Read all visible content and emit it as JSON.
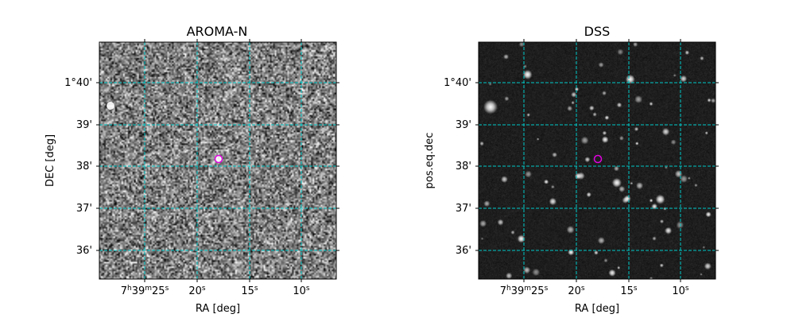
{
  "chart_data": [
    {
      "type": "heatmap",
      "title": "AROMA-N",
      "xlabel": "RA [deg]",
      "ylabel": "DEC [deg]",
      "x_tick_labels": [
        {
          "base": "7",
          "s1": "h",
          "mid": "39",
          "s2": "m",
          "end": "25",
          "s3": "s"
        },
        {
          "base": "20",
          "s1": "s"
        },
        {
          "base": "15",
          "s1": "s"
        },
        {
          "base": "10",
          "s1": "s"
        }
      ],
      "y_tick_labels": [
        "1°40'",
        "39'",
        "38'",
        "37'",
        "36'"
      ],
      "grid": true,
      "grid_color": "#00c8c8",
      "image_style": "noise",
      "bright_sources": [
        {
          "ra": "7h39m30s",
          "dec": "1°39.4'"
        }
      ],
      "marker": {
        "ra": "7h39m18s",
        "dec": "1°38.2'",
        "color": "#e000e0"
      }
    },
    {
      "type": "heatmap",
      "title": "DSS",
      "xlabel": "RA [deg]",
      "ylabel": "pos.eq.dec",
      "x_tick_labels": [
        {
          "base": "7",
          "s1": "h",
          "mid": "39",
          "s2": "m",
          "end": "25",
          "s3": "s"
        },
        {
          "base": "20",
          "s1": "s"
        },
        {
          "base": "15",
          "s1": "s"
        },
        {
          "base": "10",
          "s1": "s"
        }
      ],
      "y_tick_labels": [
        "1°40'",
        "39'",
        "38'",
        "37'",
        "36'"
      ],
      "grid": true,
      "grid_color": "#00c8c8",
      "image_style": "starfield",
      "marker": {
        "ra": "7h39m18s",
        "dec": "1°38.2'",
        "color": "#e000e0"
      }
    }
  ]
}
